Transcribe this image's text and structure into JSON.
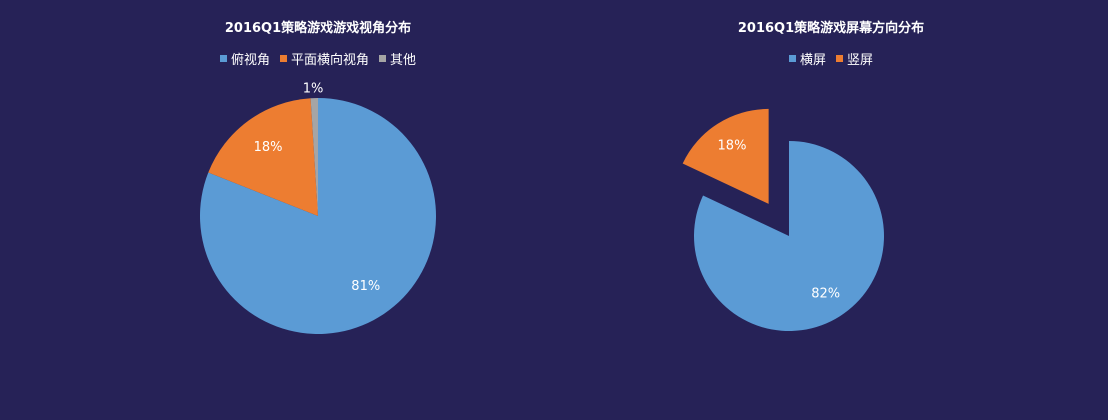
{
  "chart_data": [
    {
      "type": "pie",
      "title": "2016Q1策略游戏游戏视角分布",
      "categories": [
        "俯视角",
        "平面横向视角",
        "其他"
      ],
      "values": [
        81,
        18,
        1
      ],
      "labels": [
        "81%",
        "18%",
        "1%"
      ],
      "colors": [
        "#5b9bd5",
        "#ed7d31",
        "#a5a5a5"
      ],
      "legend_position": "top"
    },
    {
      "type": "pie",
      "title": "2016Q1策略游戏屏幕方向分布",
      "categories": [
        "横屏",
        "竖屏"
      ],
      "values": [
        82,
        18
      ],
      "labels": [
        "82%",
        "18%"
      ],
      "colors": [
        "#5b9bd5",
        "#ed7d31"
      ],
      "legend_position": "top",
      "exploded": "竖屏"
    }
  ],
  "background_color": "#262257"
}
